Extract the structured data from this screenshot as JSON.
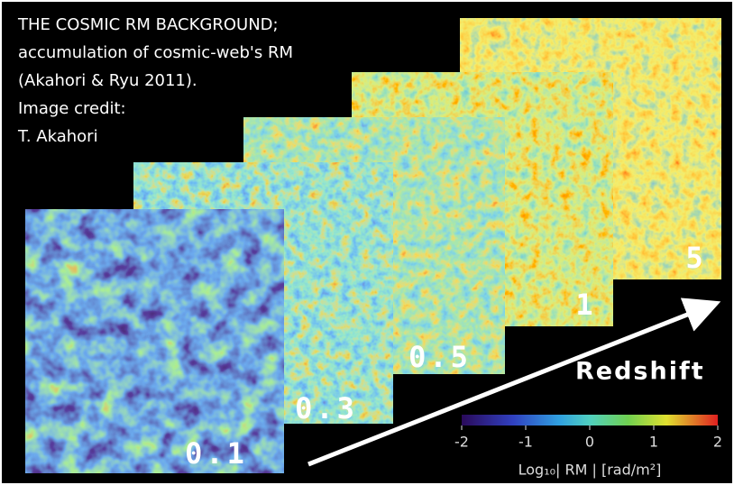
{
  "caption": [
    "THE COSMIC RM BACKGROUND;",
    "accumulation of cosmic-web's RM",
    "(Akahori & Ryu 2011).",
    "Image credit:",
    "T. Akahori"
  ],
  "layers": [
    "5",
    "1",
    "0.5",
    "0.3",
    "0.1"
  ],
  "axis_label": "Redshift",
  "colorbar": {
    "lim": [
      -2,
      2
    ],
    "ticks": [
      -2,
      -1,
      0,
      1,
      2
    ],
    "label": "Log₁₀| RM | [rad/m²]"
  }
}
